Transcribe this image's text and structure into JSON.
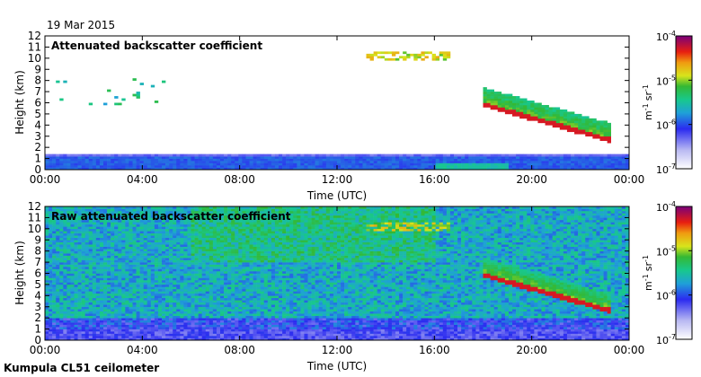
{
  "date_label": "19 Mar 2015",
  "footer_label": "Kumpula CL51 ceilometer",
  "chart_data": [
    {
      "type": "heatmap",
      "title": "Attenuated backscatter coefficient",
      "xlabel": "Time (UTC)",
      "ylabel": "Height (km)",
      "xlim": [
        0,
        24
      ],
      "ylim": [
        0,
        12
      ],
      "x_ticks": [
        "00:00",
        "04:00",
        "08:00",
        "12:00",
        "16:00",
        "20:00",
        "00:00"
      ],
      "y_ticks": [
        "0",
        "1",
        "2",
        "3",
        "4",
        "5",
        "6",
        "7",
        "8",
        "9",
        "10",
        "11",
        "12"
      ],
      "colorbar": {
        "label_units": "m",
        "label_exp1": "-1",
        "label_sr": "sr",
        "label_exp2": "-1",
        "scale": "log",
        "range": [
          1e-07,
          0.0001
        ],
        "tick_exponents": [
          "-7",
          "-6",
          "-5",
          "-4"
        ],
        "tick_base": "10"
      },
      "features": [
        {
          "kind": "boundary_layer",
          "t_start": 0,
          "t_end": 24,
          "top_km": 1.5,
          "level": 0.3
        },
        {
          "kind": "high_cloud",
          "t_start": 13.2,
          "t_end": 16.6,
          "base_km": 9.8,
          "top_km": 10.7,
          "level": 0.78
        },
        {
          "kind": "descending_cloud",
          "t_start": 18.0,
          "t_end": 23.2,
          "base_km_start": 5.8,
          "base_km_end": 2.6,
          "level": 0.85
        },
        {
          "kind": "sparse_echoes",
          "t_start": 0,
          "t_end": 5,
          "base_km": 5.8,
          "top_km": 8.2,
          "level": 0.4
        }
      ]
    },
    {
      "type": "heatmap",
      "title": "Raw attenuated backscatter coefficient",
      "xlabel": "Time (UTC)",
      "ylabel": "Height (km)",
      "xlim": [
        0,
        24
      ],
      "ylim": [
        0,
        12
      ],
      "x_ticks": [
        "00:00",
        "04:00",
        "08:00",
        "12:00",
        "16:00",
        "20:00",
        "00:00"
      ],
      "y_ticks": [
        "0",
        "1",
        "2",
        "3",
        "4",
        "5",
        "6",
        "7",
        "8",
        "9",
        "10",
        "11",
        "12"
      ],
      "colorbar": {
        "label_units": "m",
        "label_exp1": "-1",
        "label_sr": "sr",
        "label_exp2": "-1",
        "scale": "log",
        "range": [
          1e-07,
          0.0001
        ],
        "tick_exponents": [
          "-7",
          "-6",
          "-5",
          "-4"
        ],
        "tick_base": "10"
      },
      "features": [
        {
          "kind": "noise_background",
          "t_start": 0,
          "t_end": 24,
          "level": 0.45
        },
        {
          "kind": "high_cloud",
          "t_start": 13.2,
          "t_end": 16.6,
          "base_km": 9.8,
          "top_km": 10.7,
          "level": 0.78
        },
        {
          "kind": "descending_cloud",
          "t_start": 18.0,
          "t_end": 23.2,
          "base_km_start": 5.8,
          "base_km_end": 2.6,
          "level": 0.85
        }
      ]
    }
  ]
}
